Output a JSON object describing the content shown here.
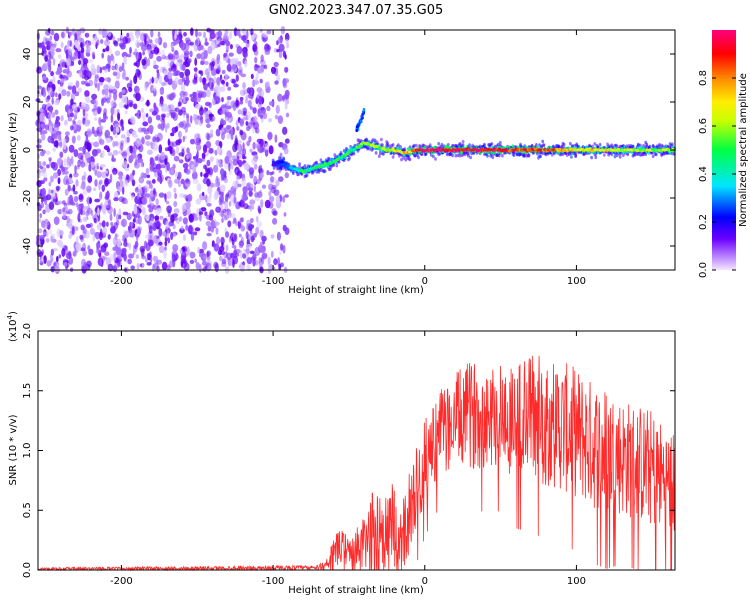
{
  "title": "GN02.2023.347.07.35.G05",
  "chart_data": [
    {
      "type": "heatmap",
      "panel": "spectrogram",
      "xlabel": "Height of straight line (km)",
      "ylabel": "Frequency (Hz)",
      "xlim": [
        -255,
        165
      ],
      "ylim": [
        -50,
        50
      ],
      "xticks": [
        -200,
        -100,
        0,
        100
      ],
      "xtick_labels": [
        "-200",
        "-100",
        "0",
        "100"
      ],
      "yticks": [
        -40,
        -20,
        0,
        20,
        40
      ],
      "ytick_labels": [
        "-40",
        "-20",
        "0",
        "20",
        "40"
      ],
      "grid": false,
      "noise_region_x": [
        -255,
        -90
      ],
      "signal_trace": {
        "x": [
          -100,
          -95,
          -90,
          -85,
          -80,
          -75,
          -70,
          -65,
          -60,
          -55,
          -50,
          -45,
          -40,
          -35,
          -30,
          -25,
          -20,
          -15,
          -10,
          -5,
          0,
          20,
          40,
          60,
          80,
          100,
          120,
          140,
          165
        ],
        "y": [
          -6,
          -5,
          -7,
          -8,
          -9,
          -8,
          -7,
          -6,
          -5,
          -3,
          -1,
          1,
          3,
          2,
          1,
          0,
          0,
          -1,
          -1,
          0,
          0,
          0,
          0,
          0,
          0,
          0,
          0,
          0,
          0
        ],
        "amplitude": [
          0.15,
          0.2,
          0.3,
          0.4,
          0.5,
          0.45,
          0.5,
          0.5,
          0.5,
          0.5,
          0.5,
          0.5,
          0.6,
          0.6,
          0.6,
          0.6,
          0.7,
          0.7,
          0.8,
          0.9,
          1.0,
          1.0,
          1.0,
          0.9,
          0.9,
          0.7,
          0.7,
          0.6,
          0.6
        ]
      },
      "spur": {
        "x": [
          -45,
          -40
        ],
        "y": [
          8,
          16
        ]
      },
      "colorbar": {
        "label": "Normalized spectral amplitude",
        "range": [
          0.0,
          1.0
        ],
        "ticks": [
          0.0,
          0.2,
          0.4,
          0.6,
          0.8
        ],
        "tick_labels": [
          "0.0",
          "0.2",
          "0.4",
          "0.6",
          "0.8"
        ]
      }
    },
    {
      "type": "line",
      "panel": "snr",
      "xlabel": "Height of straight line (km)",
      "ylabel": "SNR (10 * v/v)",
      "y_multiplier": "(x10",
      "y_multiplier_exp": "4",
      "y_multiplier_close": ")",
      "xlim": [
        -255,
        165
      ],
      "ylim": [
        0,
        2.0
      ],
      "xticks": [
        -200,
        -100,
        0,
        100
      ],
      "xtick_labels": [
        "-200",
        "-100",
        "0",
        "100"
      ],
      "yticks": [
        0.0,
        0.5,
        1.0,
        1.5,
        2.0
      ],
      "ytick_labels": [
        "0.0",
        "0.5",
        "1.0",
        "1.5",
        "2.0"
      ],
      "grid": false,
      "color": "#ff2a2a",
      "envelope": {
        "x": [
          -255,
          -70,
          -65,
          -60,
          -55,
          -50,
          -45,
          -40,
          -35,
          -30,
          -25,
          -20,
          -15,
          -10,
          -5,
          0,
          5,
          10,
          20,
          30,
          40,
          50,
          60,
          70,
          80,
          90,
          100,
          110,
          120,
          130,
          140,
          150,
          160,
          165
        ],
        "mean": [
          0.01,
          0.02,
          0.05,
          0.15,
          0.2,
          0.15,
          0.15,
          0.2,
          0.3,
          0.35,
          0.3,
          0.35,
          0.25,
          0.5,
          0.7,
          0.9,
          1.05,
          1.15,
          1.25,
          1.3,
          1.3,
          1.3,
          1.25,
          1.3,
          1.25,
          1.2,
          1.15,
          1.05,
          1.0,
          0.95,
          0.9,
          0.85,
          0.75,
          0.7
        ],
        "spread": [
          0.01,
          0.02,
          0.05,
          0.12,
          0.15,
          0.12,
          0.2,
          0.25,
          0.35,
          0.4,
          0.35,
          0.4,
          0.3,
          0.35,
          0.35,
          0.35,
          0.35,
          0.35,
          0.4,
          0.45,
          0.45,
          0.45,
          0.5,
          0.55,
          0.55,
          0.55,
          0.55,
          0.55,
          0.55,
          0.5,
          0.5,
          0.5,
          0.45,
          0.45
        ]
      }
    }
  ]
}
